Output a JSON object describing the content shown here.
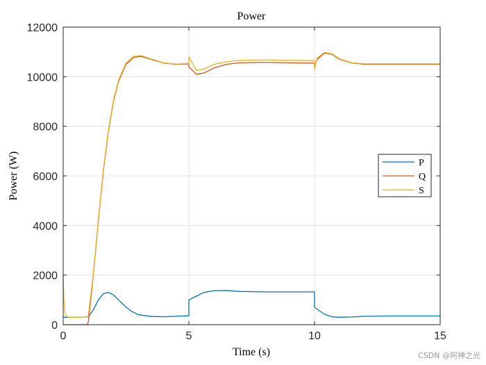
{
  "chart_data": {
    "type": "line",
    "title": "Power",
    "xlabel": "Time (s)",
    "ylabel": "Power (W)",
    "xlim": [
      0,
      15
    ],
    "ylim": [
      0,
      12000
    ],
    "xticks": [
      0,
      5,
      10,
      15
    ],
    "yticks": [
      0,
      2000,
      4000,
      6000,
      8000,
      10000,
      12000
    ],
    "grid": true,
    "legend_position": "right-middle",
    "series": [
      {
        "name": "P",
        "color": "#0072BD",
        "x": [
          0,
          0.05,
          0.15,
          0.3,
          0.6,
          1.0,
          1.2,
          1.4,
          1.6,
          1.8,
          2.0,
          2.2,
          2.4,
          2.7,
          3.0,
          3.5,
          4.0,
          4.5,
          5.0,
          5.0,
          5.3,
          5.6,
          6.0,
          6.5,
          7.0,
          8.0,
          9.0,
          10.0,
          10.0,
          10.2,
          10.4,
          10.7,
          11.0,
          11.5,
          12.0,
          13.0,
          14.0,
          15.0
        ],
        "y": [
          300,
          300,
          300,
          300,
          300,
          320,
          600,
          1000,
          1250,
          1300,
          1200,
          1000,
          800,
          550,
          400,
          330,
          320,
          340,
          360,
          1000,
          1150,
          1300,
          1370,
          1380,
          1340,
          1320,
          1320,
          1320,
          700,
          560,
          420,
          320,
          300,
          310,
          340,
          350,
          350,
          350
        ]
      },
      {
        "name": "Q",
        "color": "#D95319",
        "x": [
          0,
          0.3,
          0.6,
          0.95,
          1.0,
          1.2,
          1.4,
          1.6,
          1.8,
          2.0,
          2.2,
          2.5,
          2.8,
          3.1,
          3.5,
          4.0,
          4.5,
          5.0,
          5.0,
          5.3,
          5.6,
          6.0,
          6.5,
          7.0,
          8.0,
          9.0,
          10.0,
          10.0,
          10.1,
          10.4,
          10.7,
          11.0,
          11.5,
          12.0,
          12.8,
          13.5,
          14.0,
          15.0
        ],
        "y": [
          0,
          0,
          0,
          0,
          100,
          2000,
          4200,
          6200,
          7800,
          9000,
          9800,
          10500,
          10780,
          10820,
          10700,
          10550,
          10500,
          10520,
          10400,
          10100,
          10150,
          10350,
          10500,
          10560,
          10580,
          10560,
          10550,
          10400,
          10700,
          10950,
          10900,
          10700,
          10550,
          10500,
          10500,
          10500,
          10500,
          10500
        ]
      },
      {
        "name": "S",
        "color": "#EDB120",
        "x": [
          0,
          0.03,
          0.08,
          0.15,
          0.25,
          0.4,
          0.6,
          0.95,
          1.0,
          1.2,
          1.4,
          1.6,
          1.8,
          2.0,
          2.2,
          2.5,
          2.8,
          3.1,
          3.5,
          4.0,
          4.5,
          5.0,
          5.0,
          5.3,
          5.6,
          6.0,
          6.5,
          7.0,
          8.0,
          9.0,
          10.0,
          10.0,
          10.1,
          10.4,
          10.7,
          11.0,
          11.5,
          12.0,
          13.0,
          14.0,
          15.0
        ],
        "y": [
          2000,
          900,
          450,
          320,
          300,
          300,
          300,
          320,
          350,
          2050,
          4250,
          6250,
          7850,
          9050,
          9850,
          10550,
          10820,
          10850,
          10720,
          10560,
          10510,
          10540,
          10800,
          10250,
          10300,
          10500,
          10600,
          10660,
          10680,
          10660,
          10650,
          10300,
          10750,
          10980,
          10920,
          10720,
          10560,
          10520,
          10520,
          10520,
          10520
        ]
      }
    ],
    "watermark": "CSDN @阿神之光"
  }
}
